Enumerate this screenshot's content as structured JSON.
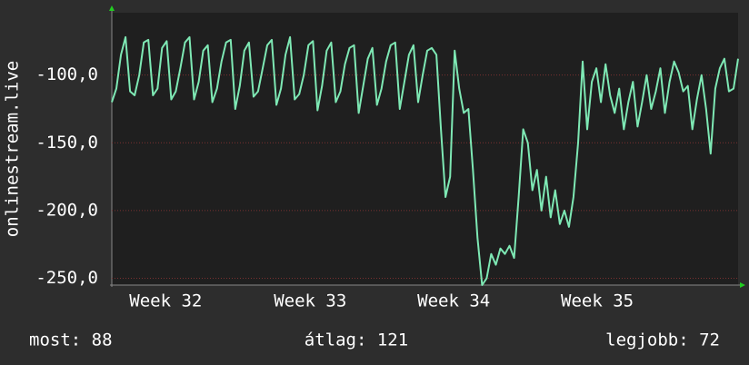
{
  "chart_data": {
    "type": "line",
    "y_label": "onlinestream.live",
    "footer": [
      "most: 88",
      "átlag: 121",
      "legjobb: 72"
    ],
    "xlim": [
      0,
      137
    ],
    "xticks": [
      {
        "value": 11.8,
        "label": "Week 32"
      },
      {
        "value": 43.4,
        "label": "Week 33"
      },
      {
        "value": 74.8,
        "label": "Week 34"
      },
      {
        "value": 106.2,
        "label": "Week 35"
      }
    ],
    "ylim": [
      -255,
      -54
    ],
    "yticks": [
      {
        "value": -100,
        "label": "-100,0"
      },
      {
        "value": -150,
        "label": "-150,0"
      },
      {
        "value": -200,
        "label": "-200,0"
      },
      {
        "value": -250,
        "label": "-250,0"
      }
    ],
    "grid": true,
    "series": [
      {
        "color": "#7ee8b4",
        "values": [
          -120,
          -110,
          -85,
          -72,
          -112,
          -115,
          -100,
          -76,
          -74,
          -115,
          -110,
          -80,
          -75,
          -118,
          -112,
          -95,
          -76,
          -72,
          -118,
          -105,
          -82,
          -78,
          -120,
          -110,
          -90,
          -76,
          -74,
          -125,
          -108,
          -82,
          -76,
          -116,
          -112,
          -95,
          -78,
          -74,
          -122,
          -110,
          -85,
          -72,
          -118,
          -114,
          -100,
          -78,
          -75,
          -126,
          -108,
          -82,
          -76,
          -120,
          -112,
          -92,
          -80,
          -78,
          -128,
          -108,
          -88,
          -80,
          -122,
          -110,
          -90,
          -78,
          -76,
          -125,
          -105,
          -85,
          -78,
          -120,
          -100,
          -82,
          -80,
          -85,
          -140,
          -190,
          -175,
          -82,
          -110,
          -128,
          -125,
          -170,
          -220,
          -255,
          -250,
          -232,
          -240,
          -228,
          -232,
          -226,
          -235,
          -190,
          -140,
          -150,
          -185,
          -170,
          -200,
          -175,
          -205,
          -185,
          -210,
          -200,
          -212,
          -190,
          -150,
          -90,
          -140,
          -105,
          -95,
          -120,
          -92,
          -115,
          -128,
          -110,
          -140,
          -120,
          -105,
          -138,
          -120,
          -100,
          -125,
          -112,
          -95,
          -128,
          -105,
          -90,
          -98,
          -112,
          -108,
          -140,
          -118,
          -100,
          -125,
          -158,
          -110,
          -95,
          -88,
          -112,
          -110,
          -88
        ]
      }
    ]
  }
}
